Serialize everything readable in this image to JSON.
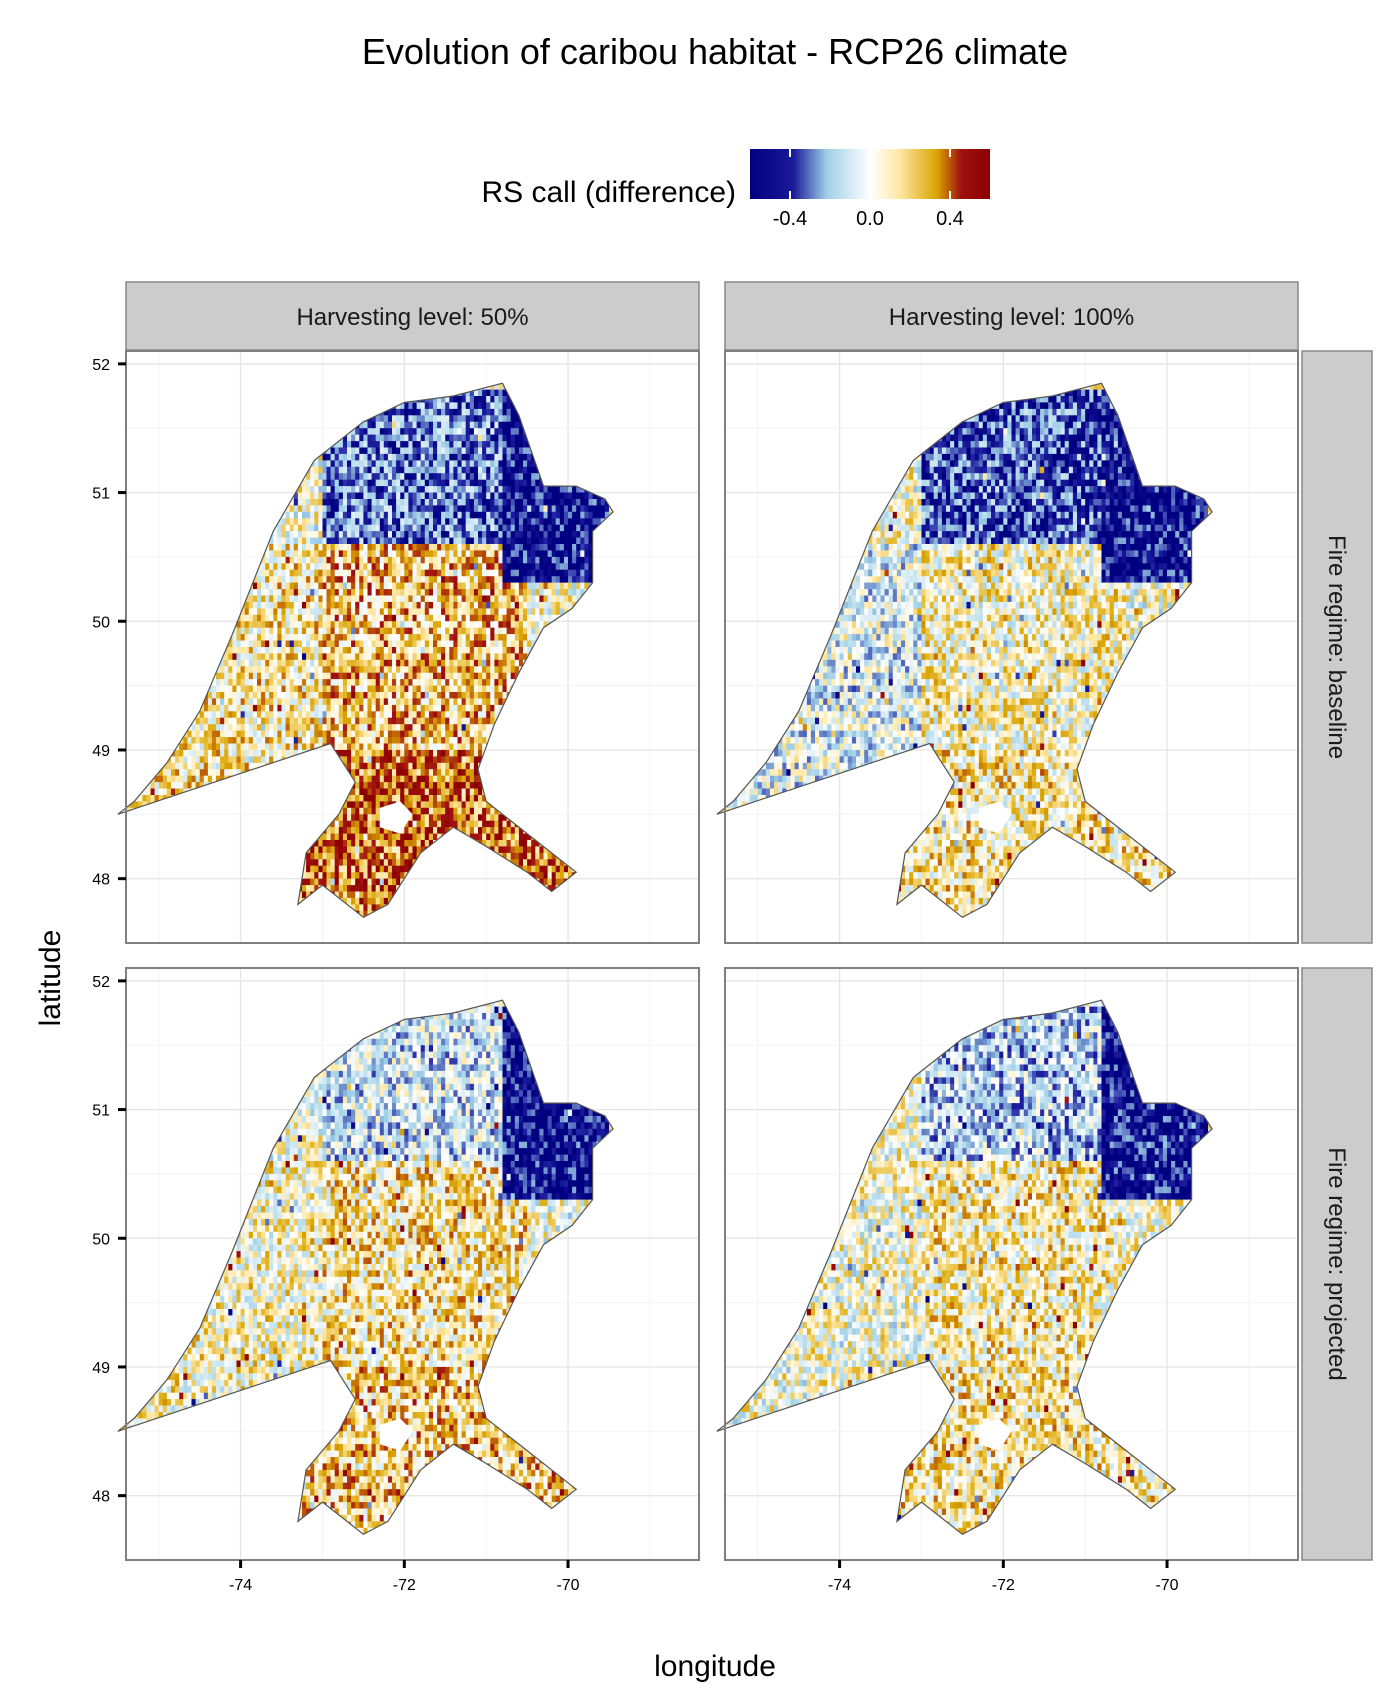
{
  "title": "Evolution of caribou habitat - RCP26 climate",
  "legend": {
    "title": "RS call (difference)",
    "position": "top",
    "tick_labels": [
      "-0.4",
      "0.0",
      "0.4"
    ],
    "colors": [
      "#000080",
      "#3a3aa8",
      "#9fd0e6",
      "#ffffff",
      "#ffe9a8",
      "#d9a400",
      "#8b0000"
    ]
  },
  "chart_data": {
    "type": "heatmap",
    "title": "Evolution of caribou habitat - RCP26 climate",
    "xlabel": "longitude",
    "ylabel": "latitude",
    "xlim": [
      -75.4,
      -68.4
    ],
    "ylim": [
      47.5,
      52.1
    ],
    "x_ticks": [
      -74,
      -72,
      -70
    ],
    "y_ticks": [
      48,
      49,
      50,
      51,
      52
    ],
    "x_tick_labels": [
      "-74",
      "-72",
      "-70"
    ],
    "y_tick_labels": [
      "48",
      "49",
      "50",
      "51",
      "52"
    ],
    "grid": true,
    "legend_position": "top",
    "fill_range": [
      -0.6,
      0.6
    ],
    "columns": [
      "Harvesting level: 50%",
      "Harvesting level: 100%"
    ],
    "rows": [
      "Fire regime: baseline",
      "Fire regime: projected"
    ],
    "outline": [
      [
        -75.5,
        48.5
      ],
      [
        -75.3,
        48.6
      ],
      [
        -74.9,
        48.9
      ],
      [
        -74.5,
        49.3
      ],
      [
        -74.1,
        49.9
      ],
      [
        -73.6,
        50.7
      ],
      [
        -73.1,
        51.25
      ],
      [
        -72.5,
        51.55
      ],
      [
        -72.0,
        51.7
      ],
      [
        -71.4,
        51.75
      ],
      [
        -70.8,
        51.85
      ],
      [
        -70.6,
        51.6
      ],
      [
        -70.3,
        51.05
      ],
      [
        -69.9,
        51.05
      ],
      [
        -69.55,
        50.95
      ],
      [
        -69.45,
        50.85
      ],
      [
        -69.7,
        50.7
      ],
      [
        -69.7,
        50.3
      ],
      [
        -69.95,
        50.1
      ],
      [
        -70.3,
        49.95
      ],
      [
        -70.6,
        49.6
      ],
      [
        -70.9,
        49.2
      ],
      [
        -71.1,
        48.85
      ],
      [
        -71.0,
        48.6
      ],
      [
        -70.5,
        48.35
      ],
      [
        -70.1,
        48.15
      ],
      [
        -69.9,
        48.05
      ],
      [
        -70.2,
        47.9
      ],
      [
        -70.5,
        48.05
      ],
      [
        -71.0,
        48.25
      ],
      [
        -71.4,
        48.4
      ],
      [
        -71.8,
        48.2
      ],
      [
        -72.2,
        47.8
      ],
      [
        -72.5,
        47.7
      ],
      [
        -73.0,
        47.95
      ],
      [
        -73.3,
        47.8
      ],
      [
        -73.2,
        48.2
      ],
      [
        -72.8,
        48.5
      ],
      [
        -72.6,
        48.75
      ],
      [
        -72.9,
        49.05
      ],
      [
        -75.5,
        48.5
      ]
    ],
    "lake": [
      [
        -72.3,
        48.55
      ],
      [
        -72.05,
        48.6
      ],
      [
        -71.9,
        48.5
      ],
      [
        -72.05,
        48.35
      ],
      [
        -72.3,
        48.4
      ]
    ],
    "panels": [
      {
        "column": "Harvesting level: 50%",
        "row": "Fire regime: baseline",
        "zones": [
          {
            "region": "north-east",
            "lon_min": -70.8,
            "lon_max": -69.5,
            "lat_min": 50.3,
            "lat_max": 51.8,
            "mean_rs_diff": -0.55
          },
          {
            "region": "north-central",
            "lon_min": -73.0,
            "lon_max": -70.8,
            "lat_min": 50.6,
            "lat_max": 51.8,
            "mean_rs_diff": -0.35
          },
          {
            "region": "west",
            "lon_min": -75.5,
            "lon_max": -73.0,
            "lat_min": 48.5,
            "lat_max": 50.6,
            "mean_rs_diff": 0.1
          },
          {
            "region": "central",
            "lon_min": -73.0,
            "lon_max": -70.5,
            "lat_min": 49.0,
            "lat_max": 50.6,
            "mean_rs_diff": 0.2
          },
          {
            "region": "south",
            "lon_min": -73.3,
            "lon_max": -69.9,
            "lat_min": 47.7,
            "lat_max": 49.0,
            "mean_rs_diff": 0.35
          }
        ]
      },
      {
        "column": "Harvesting level: 100%",
        "row": "Fire regime: baseline",
        "zones": [
          {
            "region": "north-east",
            "lon_min": -70.8,
            "lon_max": -69.5,
            "lat_min": 50.3,
            "lat_max": 51.8,
            "mean_rs_diff": -0.55
          },
          {
            "region": "north-central",
            "lon_min": -73.0,
            "lon_max": -70.8,
            "lat_min": 50.6,
            "lat_max": 51.8,
            "mean_rs_diff": -0.4
          },
          {
            "region": "west",
            "lon_min": -75.5,
            "lon_max": -73.0,
            "lat_min": 48.5,
            "lat_max": 50.6,
            "mean_rs_diff": -0.1
          },
          {
            "region": "central",
            "lon_min": -73.0,
            "lon_max": -70.5,
            "lat_min": 49.0,
            "lat_max": 50.6,
            "mean_rs_diff": 0.05
          },
          {
            "region": "south",
            "lon_min": -73.3,
            "lon_max": -69.9,
            "lat_min": 47.7,
            "lat_max": 49.0,
            "mean_rs_diff": 0.1
          }
        ]
      },
      {
        "column": "Harvesting level: 50%",
        "row": "Fire regime: projected",
        "zones": [
          {
            "region": "north-east",
            "lon_min": -70.8,
            "lon_max": -69.5,
            "lat_min": 50.3,
            "lat_max": 51.8,
            "mean_rs_diff": -0.55
          },
          {
            "region": "north-central",
            "lon_min": -73.0,
            "lon_max": -70.8,
            "lat_min": 50.6,
            "lat_max": 51.8,
            "mean_rs_diff": -0.15
          },
          {
            "region": "west",
            "lon_min": -75.5,
            "lon_max": -73.0,
            "lat_min": 48.5,
            "lat_max": 50.6,
            "mean_rs_diff": 0.05
          },
          {
            "region": "central",
            "lon_min": -73.0,
            "lon_max": -70.5,
            "lat_min": 49.0,
            "lat_max": 50.6,
            "mean_rs_diff": 0.12
          },
          {
            "region": "south",
            "lon_min": -73.3,
            "lon_max": -69.9,
            "lat_min": 47.7,
            "lat_max": 49.0,
            "mean_rs_diff": 0.18
          }
        ]
      },
      {
        "column": "Harvesting level: 100%",
        "row": "Fire regime: projected",
        "zones": [
          {
            "region": "north-east",
            "lon_min": -70.8,
            "lon_max": -69.5,
            "lat_min": 50.3,
            "lat_max": 51.8,
            "mean_rs_diff": -0.55
          },
          {
            "region": "north-central",
            "lon_min": -73.0,
            "lon_max": -70.8,
            "lat_min": 50.6,
            "lat_max": 51.8,
            "mean_rs_diff": -0.2
          },
          {
            "region": "west",
            "lon_min": -75.5,
            "lon_max": -73.0,
            "lat_min": 48.5,
            "lat_max": 50.6,
            "mean_rs_diff": 0.0
          },
          {
            "region": "central",
            "lon_min": -73.0,
            "lon_max": -70.5,
            "lat_min": 49.0,
            "lat_max": 50.6,
            "mean_rs_diff": 0.08
          },
          {
            "region": "south",
            "lon_min": -73.3,
            "lon_max": -69.9,
            "lat_min": 47.7,
            "lat_max": 49.0,
            "mean_rs_diff": 0.1
          }
        ]
      }
    ]
  }
}
